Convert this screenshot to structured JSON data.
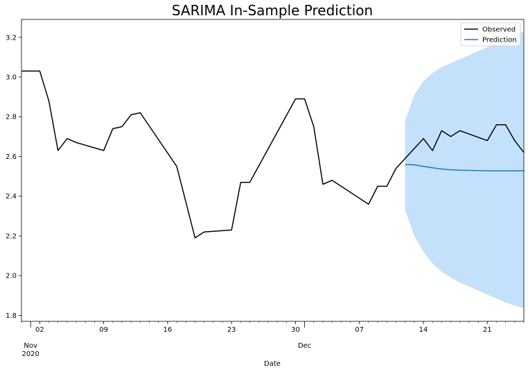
{
  "chart_data": {
    "type": "line",
    "title": "SARIMA In-Sample Prediction",
    "xlabel": "Date",
    "ylabel": "",
    "xlim": [
      "2020-10-31",
      "2020-12-25"
    ],
    "ylim": [
      1.77,
      3.29
    ],
    "yticks": [
      1.8,
      2.0,
      2.2,
      2.4,
      2.6,
      2.8,
      3.0,
      3.2
    ],
    "xticks": [
      {
        "date": "2020-11-02",
        "label": "02"
      },
      {
        "date": "2020-11-09",
        "label": "09"
      },
      {
        "date": "2020-11-16",
        "label": "16"
      },
      {
        "date": "2020-11-23",
        "label": "23"
      },
      {
        "date": "2020-11-30",
        "label": "30"
      },
      {
        "date": "2020-12-07",
        "label": "07"
      },
      {
        "date": "2020-12-14",
        "label": "14"
      },
      {
        "date": "2020-12-21",
        "label": "21"
      }
    ],
    "month_labels": [
      {
        "date": "2020-11-01",
        "label": "Nov",
        "year": "2020"
      },
      {
        "date": "2020-12-01",
        "label": "Dec",
        "year": ""
      }
    ],
    "legend_position": "top-right",
    "series": [
      {
        "name": "Observed",
        "color": "#000000",
        "points": [
          [
            "2020-10-31",
            3.03
          ],
          [
            "2020-11-02",
            3.03
          ],
          [
            "2020-11-03",
            2.88
          ],
          [
            "2020-11-04",
            2.63
          ],
          [
            "2020-11-05",
            2.69
          ],
          [
            "2020-11-06",
            2.67
          ],
          [
            "2020-11-09",
            2.63
          ],
          [
            "2020-11-10",
            2.74
          ],
          [
            "2020-11-11",
            2.75
          ],
          [
            "2020-11-12",
            2.81
          ],
          [
            "2020-11-13",
            2.82
          ],
          [
            "2020-11-17",
            2.55
          ],
          [
            "2020-11-19",
            2.19
          ],
          [
            "2020-11-20",
            2.22
          ],
          [
            "2020-11-23",
            2.23
          ],
          [
            "2020-11-24",
            2.47
          ],
          [
            "2020-11-25",
            2.47
          ],
          [
            "2020-11-30",
            2.89
          ],
          [
            "2020-12-01",
            2.89
          ],
          [
            "2020-12-02",
            2.75
          ],
          [
            "2020-12-03",
            2.46
          ],
          [
            "2020-12-04",
            2.48
          ],
          [
            "2020-12-08",
            2.36
          ],
          [
            "2020-12-09",
            2.45
          ],
          [
            "2020-12-10",
            2.45
          ],
          [
            "2020-12-11",
            2.54
          ],
          [
            "2020-12-14",
            2.69
          ],
          [
            "2020-12-15",
            2.63
          ],
          [
            "2020-12-16",
            2.73
          ],
          [
            "2020-12-17",
            2.7
          ],
          [
            "2020-12-18",
            2.73
          ],
          [
            "2020-12-21",
            2.68
          ],
          [
            "2020-12-22",
            2.76
          ],
          [
            "2020-12-23",
            2.76
          ],
          [
            "2020-12-24",
            2.68
          ],
          [
            "2020-12-25",
            2.62
          ]
        ]
      },
      {
        "name": "Prediction",
        "color": "#1f77b4",
        "points": [
          [
            "2020-12-12",
            2.56
          ],
          [
            "2020-12-13",
            2.558
          ],
          [
            "2020-12-14",
            2.55
          ],
          [
            "2020-12-15",
            2.543
          ],
          [
            "2020-12-16",
            2.537
          ],
          [
            "2020-12-17",
            2.533
          ],
          [
            "2020-12-18",
            2.531
          ],
          [
            "2020-12-19",
            2.53
          ],
          [
            "2020-12-20",
            2.529
          ],
          [
            "2020-12-21",
            2.528
          ],
          [
            "2020-12-22",
            2.528
          ],
          [
            "2020-12-23",
            2.528
          ],
          [
            "2020-12-24",
            2.528
          ],
          [
            "2020-12-25",
            2.528
          ]
        ]
      }
    ],
    "confidence_band": {
      "color": "#c4e1fc",
      "upper": [
        [
          "2020-12-12",
          2.78
        ],
        [
          "2020-12-13",
          2.91
        ],
        [
          "2020-12-14",
          2.98
        ],
        [
          "2020-12-15",
          3.02
        ],
        [
          "2020-12-16",
          3.05
        ],
        [
          "2020-12-17",
          3.07
        ],
        [
          "2020-12-18",
          3.09
        ],
        [
          "2020-12-19",
          3.11
        ],
        [
          "2020-12-20",
          3.13
        ],
        [
          "2020-12-21",
          3.15
        ],
        [
          "2020-12-22",
          3.17
        ],
        [
          "2020-12-23",
          3.19
        ],
        [
          "2020-12-24",
          3.21
        ],
        [
          "2020-12-25",
          3.23
        ]
      ],
      "lower": [
        [
          "2020-12-12",
          2.33
        ],
        [
          "2020-12-13",
          2.2
        ],
        [
          "2020-12-14",
          2.12
        ],
        [
          "2020-12-15",
          2.06
        ],
        [
          "2020-12-16",
          2.02
        ],
        [
          "2020-12-17",
          1.99
        ],
        [
          "2020-12-18",
          1.965
        ],
        [
          "2020-12-19",
          1.945
        ],
        [
          "2020-12-20",
          1.925
        ],
        [
          "2020-12-21",
          1.905
        ],
        [
          "2020-12-22",
          1.885
        ],
        [
          "2020-12-23",
          1.865
        ],
        [
          "2020-12-24",
          1.85
        ],
        [
          "2020-12-25",
          1.835
        ]
      ]
    }
  }
}
